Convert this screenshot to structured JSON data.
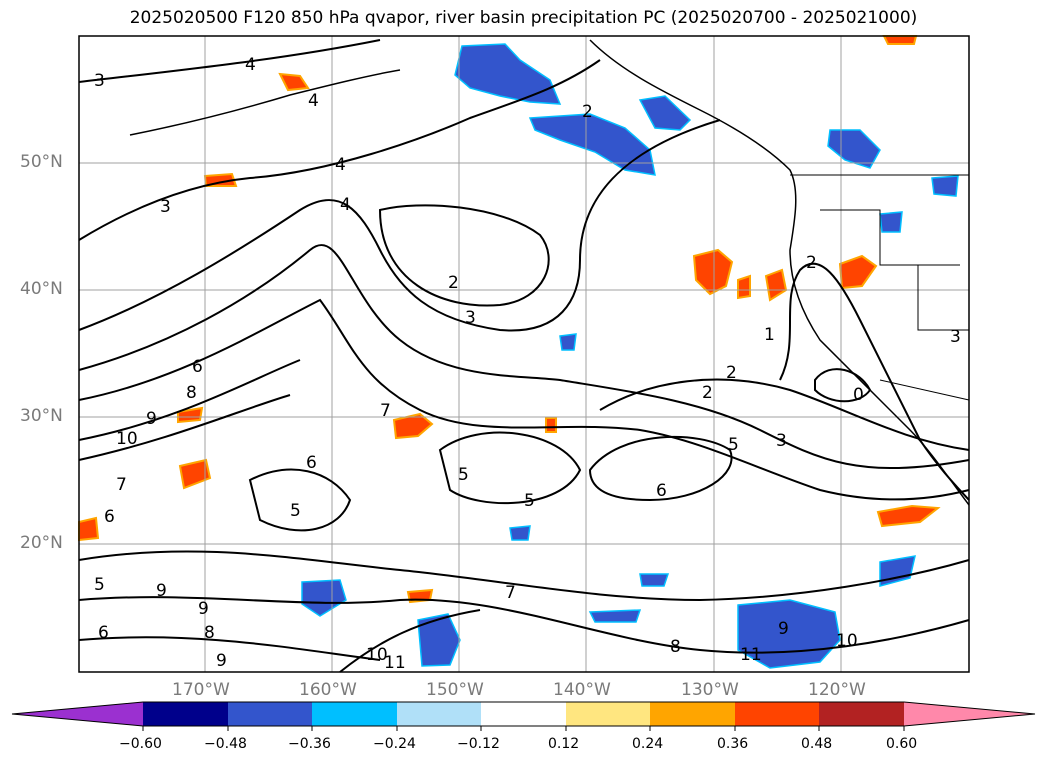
{
  "title": "2025020500 F120 850 hPa qvapor, river basin precipitation PC (2025020700 - 2025021000)",
  "map": {
    "lat_labels": [
      {
        "text": "50°N",
        "lat": 50
      },
      {
        "text": "40°N",
        "lat": 40
      },
      {
        "text": "30°N",
        "lat": 30
      },
      {
        "text": "20°N",
        "lat": 20
      }
    ],
    "lon_labels": [
      {
        "text": "170°W",
        "lon": -170
      },
      {
        "text": "160°W",
        "lon": -160
      },
      {
        "text": "150°W",
        "lon": -150
      },
      {
        "text": "140°W",
        "lon": -140
      },
      {
        "text": "130°W",
        "lon": -130
      },
      {
        "text": "120°W",
        "lon": -120
      }
    ],
    "contour_labels": [
      "4",
      "3",
      "4",
      "4",
      "3",
      "2",
      "3",
      "6",
      "8",
      "9",
      "10",
      "7",
      "6",
      "5",
      "5",
      "6",
      "5",
      "2",
      "1",
      "2",
      "0",
      "3",
      "5",
      "6",
      "7",
      "8",
      "9",
      "10",
      "11",
      "9",
      "8",
      "9",
      "5",
      "6",
      "7",
      "10",
      "11",
      "2",
      "3"
    ],
    "colors": {
      "contour": "#000000",
      "grid": "#a0a0a0",
      "negative_fill": "#3355cc",
      "positive_fill": "#ff4400"
    }
  },
  "colorbar": {
    "ticks": [
      "−0.60",
      "−0.48",
      "−0.36",
      "−0.24",
      "−0.12",
      "0.12",
      "0.24",
      "0.36",
      "0.48",
      "0.60"
    ],
    "colors": [
      "#9b30d0",
      "#00008b",
      "#3355cc",
      "#00bfff",
      "#b0e0f8",
      "#ffffff",
      "#ffe680",
      "#ffa500",
      "#ff4400",
      "#b22222",
      "#ff88aa"
    ]
  }
}
